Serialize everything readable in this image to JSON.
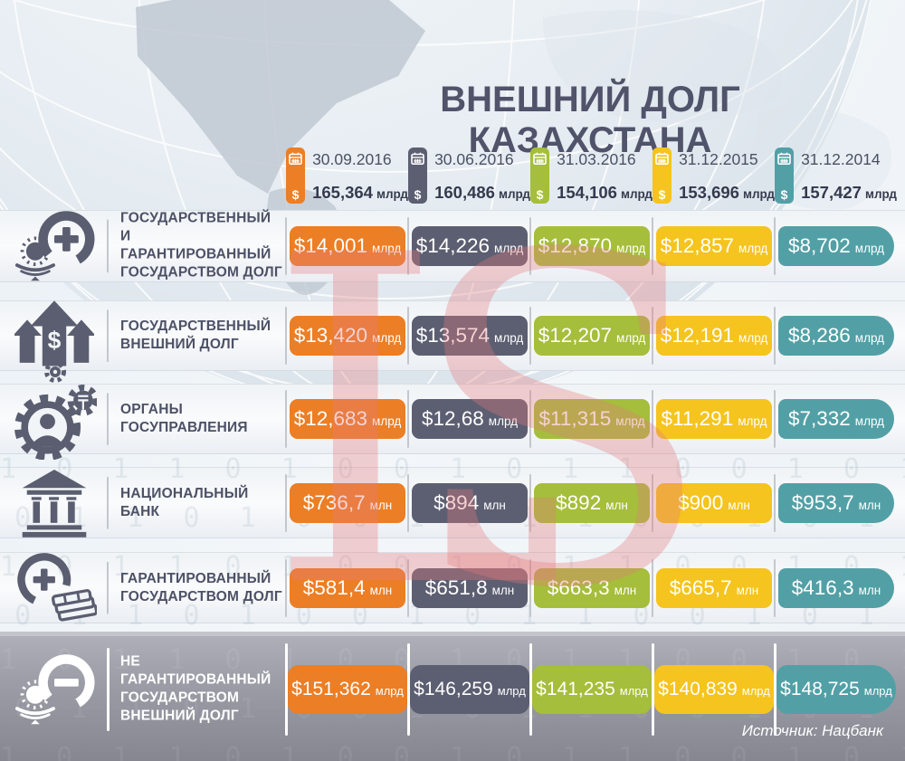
{
  "title": "ВНЕШНИЙ ДОЛГ КАЗАХСТАНА",
  "source": "Источник: Нацбанк",
  "currency_symbol": "$",
  "watermark": {
    "letters": [
      "L",
      "S"
    ]
  },
  "binary_pattern": "1 0 1 1 0 1 0 0 1 0 1 1 0 0 1 0 1 1 0 1 0 0 1 1 0 1 0 1 1 0",
  "columns": [
    {
      "date": "30.09.2016",
      "total": "165,364",
      "unit": "млрд",
      "color": "#ec7e25"
    },
    {
      "date": "30.06.2016",
      "total": "160,486",
      "unit": "млрд",
      "color": "#5c5f71"
    },
    {
      "date": "31.03.2016",
      "total": "154,106",
      "unit": "млрд",
      "color": "#a5be3b"
    },
    {
      "date": "31.12.2015",
      "total": "153,696",
      "unit": "млрд",
      "color": "#f5c41e"
    },
    {
      "date": "31.12.2014",
      "total": "157,427",
      "unit": "млрд",
      "color": "#52a0a6"
    }
  ],
  "rows": [
    {
      "icon": "emblem-plus-icon",
      "theme": "light",
      "label_lines": [
        "ГОСУДАРСТВЕННЫЙ",
        "И ГАРАНТИРОВАННЫЙ",
        "ГОСУДАРСТВОМ ДОЛГ"
      ],
      "values": [
        {
          "amount": "$14,001",
          "unit": "млрд"
        },
        {
          "amount": "$14,226",
          "unit": "млрд"
        },
        {
          "amount": "$12,870",
          "unit": "млрд"
        },
        {
          "amount": "$12,857",
          "unit": "млрд"
        },
        {
          "amount": "$8,702",
          "unit": "млрд"
        }
      ]
    },
    {
      "icon": "growth-arrows-icon",
      "theme": "light",
      "label_lines": [
        "ГОСУДАРСТВЕННЫЙ",
        "ВНЕШНИЙ ДОЛГ"
      ],
      "values": [
        {
          "amount": "$13,420",
          "unit": "млрд"
        },
        {
          "amount": "$13,574",
          "unit": "млрд"
        },
        {
          "amount": "$12,207",
          "unit": "млрд"
        },
        {
          "amount": "$12,191",
          "unit": "млрд"
        },
        {
          "amount": "$8,286",
          "unit": "млрд"
        }
      ]
    },
    {
      "icon": "gear-person-icon",
      "theme": "light",
      "label_lines": [
        "ОРГАНЫ",
        "ГОСУПРАВЛЕНИЯ"
      ],
      "values": [
        {
          "amount": "$12,683",
          "unit": "млрд"
        },
        {
          "amount": "$12,68",
          "unit": "млрд"
        },
        {
          "amount": "$11,315",
          "unit": "млрд"
        },
        {
          "amount": "$11,291",
          "unit": "млрд"
        },
        {
          "amount": "$7,332",
          "unit": "млрд"
        }
      ]
    },
    {
      "icon": "bank-icon",
      "theme": "light",
      "label_lines": [
        "НАЦИОНАЛЬНЫЙ",
        "БАНК"
      ],
      "values": [
        {
          "amount": "$736,7",
          "unit": "млн"
        },
        {
          "amount": "$894",
          "unit": "млн"
        },
        {
          "amount": "$892",
          "unit": "млн"
        },
        {
          "amount": "$900",
          "unit": "млн"
        },
        {
          "amount": "$953,7",
          "unit": "млн"
        }
      ]
    },
    {
      "icon": "money-plus-icon",
      "theme": "light",
      "label_lines": [
        "ГАРАНТИРОВАННЫЙ",
        "ГОСУДАРСТВОМ ДОЛГ"
      ],
      "values": [
        {
          "amount": "$581,4",
          "unit": "млн"
        },
        {
          "amount": "$651,8",
          "unit": "млн"
        },
        {
          "amount": "$663,3",
          "unit": "млн"
        },
        {
          "amount": "$665,7",
          "unit": "млн"
        },
        {
          "amount": "$416,3",
          "unit": "млн"
        }
      ]
    },
    {
      "icon": "emblem-minus-icon",
      "theme": "dark",
      "label_lines": [
        "НЕ ГАРАНТИРОВАННЫЙ",
        "ГОСУДАРСТВОМ",
        "ВНЕШНИЙ ДОЛГ"
      ],
      "values": [
        {
          "amount": "$151,362",
          "unit": "млрд"
        },
        {
          "amount": "$146,259",
          "unit": "млрд"
        },
        {
          "amount": "$141,235",
          "unit": "млрд"
        },
        {
          "amount": "$140,839",
          "unit": "млрд"
        },
        {
          "amount": "$148,725",
          "unit": "млрд"
        }
      ]
    }
  ],
  "chart_data": {
    "type": "table",
    "title": "ВНЕШНИЙ ДОЛГ КАЗАХСТАНА",
    "unit_note": "млрд = billions USD, млн = millions USD",
    "columns": [
      "30.09.2016",
      "30.06.2016",
      "31.03.2016",
      "31.12.2015",
      "31.12.2014"
    ],
    "total_debt_bln": [
      165.364,
      160.486,
      154.106,
      153.696,
      157.427
    ],
    "rows": [
      {
        "name": "Государственный и гарантированный государством долг",
        "values_bln": [
          14.001,
          14.226,
          12.87,
          12.857,
          8.702
        ]
      },
      {
        "name": "Государственный внешний долг",
        "values_bln": [
          13.42,
          13.574,
          12.207,
          12.191,
          8.286
        ]
      },
      {
        "name": "Органы госуправления",
        "values_bln": [
          12.683,
          12.68,
          11.315,
          11.291,
          7.332
        ]
      },
      {
        "name": "Национальный банк",
        "values_mln": [
          736.7,
          894,
          892,
          900,
          953.7
        ]
      },
      {
        "name": "Гарантированный государством долг",
        "values_mln": [
          581.4,
          651.8,
          663.3,
          665.7,
          416.3
        ]
      },
      {
        "name": "Не гарантированный государством внешний долг",
        "values_bln": [
          151.362,
          146.259,
          141.235,
          140.839,
          148.725
        ]
      }
    ],
    "source": "Источник: Нацбанк"
  }
}
